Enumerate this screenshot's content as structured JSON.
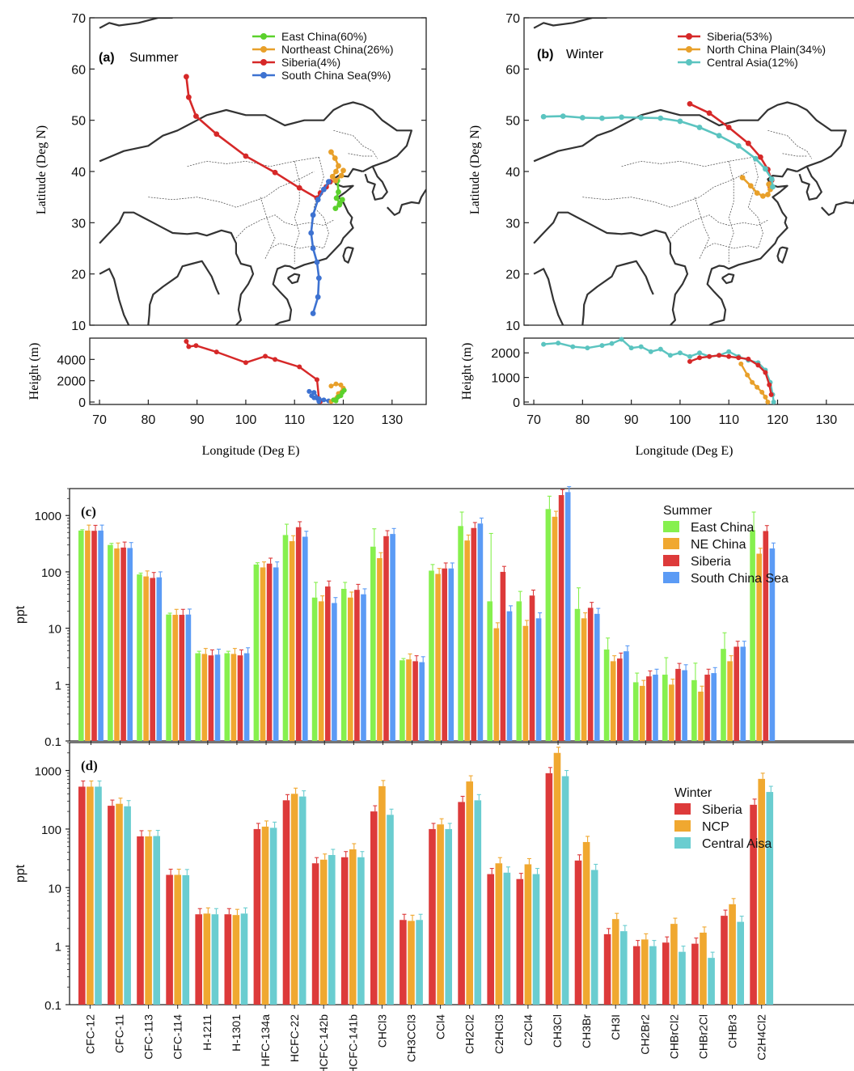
{
  "colors": {
    "east_china": "#5bd12c",
    "ne_china": "#e8a02a",
    "siberia": "#d62828",
    "south_china_sea": "#3d72d1",
    "central_asia": "#5bc4c0",
    "bar_green": "#86f04e",
    "bar_orange": "#f0a830",
    "bar_red": "#dd3a3a",
    "bar_blue": "#5b9bf5",
    "bar_teal": "#6acdd0"
  },
  "maps": {
    "summer": {
      "label_letter": "(a)",
      "label_season": "Summer",
      "ylabel": "Latitude (Deg N)",
      "height_ylabel": "Height (m)",
      "xlabel": "Longitude (Deg E)",
      "lat_ticks": [
        "70",
        "60",
        "50",
        "40",
        "30",
        "20",
        "10"
      ],
      "height_ticks": [
        "4000",
        "2000",
        "0"
      ],
      "lon_ticks": [
        "70",
        "80",
        "90",
        "100",
        "110",
        "120",
        "130"
      ],
      "legend": [
        "East China(60%)",
        "Northeast China(26%)",
        "Siberia(4%)",
        "South China Sea(9%)"
      ]
    },
    "winter": {
      "label_letter": "(b)",
      "label_season": "Winter",
      "ylabel": "Latitude (Deg N)",
      "height_ylabel": "Height (m)",
      "xlabel": "Longitude (Deg E)",
      "lat_ticks": [
        "70",
        "60",
        "50",
        "40",
        "30",
        "20",
        "10"
      ],
      "height_ticks": [
        "2000",
        "1000",
        "0"
      ],
      "lon_ticks": [
        "70",
        "80",
        "90",
        "100",
        "110",
        "120",
        "130"
      ],
      "legend": [
        "Siberia(53%)",
        "North China Plain(34%)",
        "Central Asia(12%)"
      ]
    }
  },
  "chart_data": [
    {
      "type": "line",
      "title": "(a) Summer",
      "xlabel": "Longitude (Deg E)",
      "ylabel": "Latitude (Deg N)",
      "xlim": [
        68,
        137
      ],
      "ylim": [
        10,
        70
      ],
      "series": [
        {
          "name": "East China(60%)",
          "x": [
            118.8,
            119.0,
            118.6,
            119.3,
            118.4,
            119.2,
            119.8
          ],
          "y": [
            38.2,
            36.0,
            34.8,
            33.8,
            32.8,
            33.5,
            34.5
          ]
        },
        {
          "name": "Northeast China(26%)",
          "x": [
            117.5,
            118.3,
            119.0,
            118.5,
            117.8,
            118.4,
            119.6,
            120.0
          ],
          "y": [
            43.8,
            42.6,
            41.1,
            40.0,
            39.0,
            38.2,
            39.2,
            40.2
          ]
        },
        {
          "name": "Siberia(4%)",
          "x": [
            87.8,
            88.3,
            89.8,
            94.0,
            100.0,
            106.0,
            111.0,
            114.6,
            115.3,
            116.5,
            117.3
          ],
          "y": [
            58.5,
            54.5,
            50.8,
            47.3,
            43.0,
            39.8,
            36.8,
            34.8,
            35.8,
            37.0,
            38.0
          ]
        },
        {
          "name": "South China Sea(9%)",
          "x": [
            113.8,
            114.8,
            115.0,
            114.6,
            113.8,
            113.4,
            113.8,
            114.8,
            116.0,
            117.0
          ],
          "y": [
            12.3,
            15.5,
            19.2,
            22.3,
            25.0,
            28.0,
            31.5,
            34.5,
            36.5,
            38.0
          ]
        }
      ]
    },
    {
      "type": "line",
      "title": "(a) Summer height",
      "xlabel": "Longitude (Deg E)",
      "ylabel": "Height (m)",
      "xlim": [
        68,
        137
      ],
      "ylim": [
        0,
        6000
      ],
      "series": [
        {
          "name": "Siberia(4%)",
          "x": [
            87.8,
            88.3,
            89.8,
            94.0,
            100.0,
            104.0,
            106.0,
            111.0,
            114.6,
            115.0,
            115.3
          ],
          "y": [
            5700,
            5200,
            5300,
            4700,
            3700,
            4300,
            4000,
            3300,
            2100,
            300,
            50
          ]
        },
        {
          "name": "South China Sea(9%)",
          "x": [
            113.0,
            114.0,
            115.0,
            116.0,
            117.0,
            114.0,
            113.5,
            115.0
          ],
          "y": [
            1000,
            900,
            300,
            200,
            100,
            400,
            600,
            50
          ]
        },
        {
          "name": "Northeast China(26%)",
          "x": [
            117.5,
            118.5,
            119.5,
            120.0,
            119.0,
            118.0,
            117.5
          ],
          "y": [
            1500,
            1700,
            1600,
            1300,
            800,
            200,
            50
          ]
        },
        {
          "name": "East China(60%)",
          "x": [
            118.0,
            119.0,
            119.8,
            120.2,
            119.5,
            118.5
          ],
          "y": [
            200,
            500,
            900,
            1100,
            600,
            100
          ]
        }
      ]
    },
    {
      "type": "line",
      "title": "(b) Winter",
      "xlabel": "Longitude (Deg E)",
      "ylabel": "Latitude (Deg N)",
      "xlim": [
        68,
        137
      ],
      "ylim": [
        10,
        70
      ],
      "series": [
        {
          "name": "Siberia(53%)",
          "x": [
            102.0,
            106.0,
            110.0,
            114.0,
            116.5,
            118.0,
            118.8,
            118.5
          ],
          "y": [
            53.2,
            51.4,
            48.6,
            45.5,
            42.8,
            40.4,
            38.3,
            37.0
          ]
        },
        {
          "name": "North China Plain(34%)",
          "x": [
            112.8,
            114.5,
            115.8,
            117.0,
            118.0,
            118.5,
            118.2
          ],
          "y": [
            38.8,
            37.2,
            35.8,
            35.2,
            35.5,
            36.5,
            37.5
          ]
        },
        {
          "name": "Central Asia(12%)",
          "x": [
            72.0,
            76.0,
            80.0,
            84.0,
            88.0,
            92.0,
            96.0,
            100.0,
            104.0,
            108.0,
            112.0,
            115.5,
            117.5,
            118.8,
            119.0
          ],
          "y": [
            50.7,
            50.8,
            50.5,
            50.4,
            50.6,
            50.5,
            50.4,
            49.8,
            48.6,
            47.0,
            45.0,
            42.5,
            40.5,
            38.5,
            37.0
          ]
        }
      ]
    },
    {
      "type": "line",
      "title": "(b) Winter height",
      "xlabel": "Longitude (Deg E)",
      "ylabel": "Height (m)",
      "xlim": [
        68,
        137
      ],
      "ylim": [
        0,
        2600
      ],
      "series": [
        {
          "name": "Central Asia(12%)",
          "x": [
            72,
            75,
            78,
            81,
            84,
            86,
            88,
            90,
            92,
            94,
            96,
            98,
            100,
            102,
            104,
            106,
            108,
            110,
            112,
            114,
            116,
            117.5,
            118.5,
            119,
            119.2
          ],
          "y": [
            2350,
            2400,
            2250,
            2200,
            2300,
            2380,
            2550,
            2200,
            2250,
            2050,
            2150,
            1900,
            2000,
            1850,
            2000,
            1850,
            1900,
            2050,
            1850,
            1700,
            1600,
            1300,
            800,
            300,
            0
          ]
        },
        {
          "name": "Siberia(53%)",
          "x": [
            102,
            104,
            106,
            108,
            110,
            112,
            114,
            116,
            117.5,
            118.3,
            118.7
          ],
          "y": [
            1650,
            1800,
            1850,
            1900,
            1850,
            1800,
            1750,
            1500,
            1200,
            700,
            300
          ]
        },
        {
          "name": "North China Plain(34%)",
          "x": [
            112.5,
            113.8,
            114.8,
            115.8,
            116.8,
            117.5,
            118.0
          ],
          "y": [
            1550,
            1100,
            800,
            600,
            400,
            200,
            0
          ]
        }
      ]
    },
    {
      "type": "bar",
      "title": "(c)",
      "ylabel": "ppt",
      "yscale": "log",
      "ylim": [
        0.1,
        3000
      ],
      "yticks": [
        "1000",
        "100",
        "10",
        "1",
        "0.1"
      ],
      "legend_title": "Summer",
      "categories": [
        "CFC-12",
        "CFC-11",
        "CFC-113",
        "CFC-114",
        "H-1211",
        "H-1301",
        "HFC-134a",
        "HCFC-22",
        "HCFC-142b",
        "HCFC-141b",
        "CHCl3",
        "CH3CCl3",
        "CCl4",
        "CH2Cl2",
        "C2HCl3",
        "C2Cl4",
        "CH3Cl",
        "CH3Br",
        "CH3I",
        "CH2Br2",
        "CHBrCl2",
        "CHBr2Cl",
        "CHBr3",
        "C2H4Cl2"
      ],
      "series": [
        {
          "name": "East China",
          "values": [
            540,
            300,
            90,
            17.5,
            3.6,
            3.6,
            135,
            450,
            35,
            50,
            280,
            2.7,
            105,
            650,
            30,
            30,
            1300,
            22,
            4.2,
            1.1,
            1.5,
            1.2,
            4.3,
            550
          ],
          "errors": [
            20,
            20,
            5,
            1,
            0.3,
            0.3,
            10,
            250,
            30,
            15,
            300,
            0.2,
            30,
            500,
            450,
            15,
            900,
            30,
            2.5,
            0.5,
            1.5,
            1.2,
            4,
            600
          ]
        },
        {
          "name": "NE China",
          "values": [
            540,
            260,
            83,
            17.3,
            3.5,
            3.5,
            120,
            350,
            30,
            35,
            175,
            2.8,
            92,
            360,
            10,
            11,
            950,
            15,
            2.6,
            0.95,
            1.0,
            0.75,
            2.6,
            210
          ]
        },
        {
          "name": "Siberia",
          "values": [
            535,
            270,
            78,
            17.3,
            3.3,
            3.3,
            140,
            620,
            55,
            48,
            430,
            2.6,
            115,
            600,
            100,
            38,
            2300,
            23,
            2.9,
            1.4,
            1.9,
            1.5,
            4.7,
            530
          ]
        },
        {
          "name": "South China Sea",
          "values": [
            540,
            265,
            80,
            17.5,
            3.4,
            3.6,
            120,
            420,
            28,
            40,
            470,
            2.5,
            115,
            720,
            20,
            15,
            2600,
            18,
            3.9,
            1.5,
            1.8,
            1.6,
            4.7,
            260
          ]
        }
      ]
    },
    {
      "type": "bar",
      "title": "(d)",
      "ylabel": "ppt",
      "yscale": "log",
      "ylim": [
        0.1,
        3000
      ],
      "yticks": [
        "1000",
        "100",
        "10",
        "1",
        "0.1"
      ],
      "legend_title": "Winter",
      "categories": [
        "CFC-12",
        "CFC-11",
        "CFC-113",
        "CFC-114",
        "H-1211",
        "H-1301",
        "HFC-134a",
        "HCFC-22",
        "HCFC-142b",
        "HCFC-141b",
        "CHCl3",
        "CH3CCl3",
        "CCl4",
        "CH2Cl2",
        "C2HCl3",
        "C2Cl4",
        "CH3Cl",
        "CH3Br",
        "CH3I",
        "CH2Br2",
        "CHBrCl2",
        "CHBr2Cl",
        "CHBr3",
        "C2H4Cl2"
      ],
      "series": [
        {
          "name": "Siberia",
          "values": [
            530,
            250,
            75,
            16.5,
            3.5,
            3.5,
            100,
            310,
            26,
            33,
            200,
            2.8,
            100,
            290,
            17,
            14,
            900,
            29,
            1.6,
            1.0,
            1.15,
            1.1,
            3.3,
            260
          ]
        },
        {
          "name": "NCP",
          "values": [
            530,
            270,
            75,
            16.5,
            3.6,
            3.4,
            110,
            400,
            30,
            45,
            540,
            2.7,
            120,
            650,
            26,
            25,
            2000,
            60,
            2.9,
            1.3,
            2.4,
            1.7,
            5.2,
            720
          ]
        },
        {
          "name": "Central Aisa",
          "values": [
            530,
            245,
            76,
            16.3,
            3.5,
            3.6,
            105,
            360,
            36,
            33,
            175,
            2.8,
            100,
            310,
            18,
            17,
            800,
            20,
            1.8,
            1.0,
            0.8,
            0.63,
            2.6,
            430
          ]
        }
      ]
    }
  ]
}
